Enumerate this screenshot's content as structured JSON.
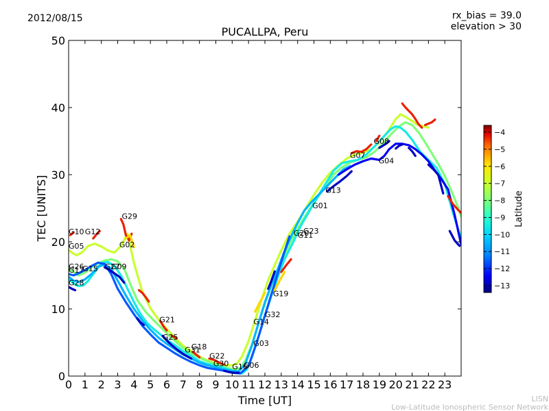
{
  "header": {
    "date": "2012/08/15",
    "rx_bias": "rx_bias = 39.0",
    "elevation": "elevation > 30"
  },
  "watermark": {
    "line1": "LISN",
    "line2": "Low-Latitude Ionospheric Sensor Network"
  },
  "colorbar": {
    "label": "Latitude",
    "min": -13.4,
    "max": -3.6,
    "ticks": [
      -4,
      -5,
      -6,
      -7,
      -8,
      -9,
      -10,
      -11,
      -12,
      -13
    ],
    "colors": [
      "#000080",
      "#0000ff",
      "#0080ff",
      "#00d4ff",
      "#29ffce",
      "#7dff7a",
      "#ceff29",
      "#ffe600",
      "#ff6a00",
      "#e40000",
      "#800000"
    ]
  },
  "chart_data": {
    "type": "scatter",
    "title": "PUCALLPA, Peru",
    "xlabel": "Time [UT]",
    "ylabel": "TEC [UNITS]",
    "xlim": [
      0,
      24
    ],
    "ylim": [
      0,
      50
    ],
    "xticks": [
      "0",
      "1",
      "2",
      "3",
      "4",
      "5",
      "6",
      "7",
      "8",
      "9",
      "10",
      "11",
      "12",
      "13",
      "14",
      "15",
      "16",
      "17",
      "18",
      "19",
      "20",
      "21",
      "22",
      "23"
    ],
    "yticks": [
      "0",
      "10",
      "20",
      "30",
      "40",
      "50"
    ],
    "grid": false,
    "color_by": "Latitude",
    "satellite_labels": [
      {
        "label": "G10",
        "x": 0.0,
        "y": 21.1
      },
      {
        "label": "G12",
        "x": 1.0,
        "y": 21.1
      },
      {
        "label": "G05",
        "x": 0.0,
        "y": 19.0
      },
      {
        "label": "G29",
        "x": 3.25,
        "y": 23.4
      },
      {
        "label": "G02",
        "x": 3.1,
        "y": 19.2
      },
      {
        "label": "G26",
        "x": 0.0,
        "y": 15.9
      },
      {
        "label": "G17",
        "x": 0.0,
        "y": 15.4
      },
      {
        "label": "G15",
        "x": 0.85,
        "y": 15.6
      },
      {
        "label": "G27",
        "x": 2.2,
        "y": 15.9
      },
      {
        "label": "G09",
        "x": 2.6,
        "y": 15.9
      },
      {
        "label": "G28",
        "x": 0.0,
        "y": 13.5
      },
      {
        "label": "G21",
        "x": 5.55,
        "y": 8.0
      },
      {
        "label": "G25",
        "x": 5.75,
        "y": 5.4
      },
      {
        "label": "G18",
        "x": 7.5,
        "y": 4.0
      },
      {
        "label": "G31",
        "x": 7.1,
        "y": 3.5
      },
      {
        "label": "G22",
        "x": 8.6,
        "y": 2.6
      },
      {
        "label": "G30",
        "x": 8.85,
        "y": 1.5
      },
      {
        "label": "G16",
        "x": 10.0,
        "y": 1.0
      },
      {
        "label": "G06",
        "x": 10.7,
        "y": 1.2
      },
      {
        "label": "G03",
        "x": 11.3,
        "y": 4.5
      },
      {
        "label": "G14",
        "x": 11.3,
        "y": 7.7
      },
      {
        "label": "G32",
        "x": 12.0,
        "y": 8.8
      },
      {
        "label": "G19",
        "x": 12.5,
        "y": 11.9
      },
      {
        "label": "G20",
        "x": 13.75,
        "y": 20.9
      },
      {
        "label": "G11",
        "x": 14.0,
        "y": 20.6
      },
      {
        "label": "G23",
        "x": 14.35,
        "y": 21.2
      },
      {
        "label": "G01",
        "x": 14.9,
        "y": 25.0
      },
      {
        "label": "G13",
        "x": 15.7,
        "y": 27.3
      },
      {
        "label": "G07",
        "x": 17.2,
        "y": 32.5
      },
      {
        "label": "G08",
        "x": 18.65,
        "y": 34.6
      },
      {
        "label": "G04",
        "x": 18.95,
        "y": 31.7
      }
    ],
    "series": [
      {
        "lat": -7.0,
        "x": [
          0.0,
          0.25,
          0.5,
          0.8,
          1.2,
          1.6,
          2.0,
          2.4,
          2.8,
          3.2,
          3.6,
          4.0,
          4.5,
          5.0,
          5.5,
          6.0,
          6.5,
          7.0,
          7.5,
          8.0,
          8.5,
          9.0,
          9.5,
          10.0,
          10.3,
          10.6,
          11.0,
          11.4,
          11.8,
          12.2,
          12.6,
          13.0,
          13.5,
          14.0,
          14.5,
          15.0,
          15.5,
          16.0,
          16.5,
          17.0,
          17.5,
          18.0,
          18.5,
          19.0,
          19.5,
          20.0,
          20.3,
          20.6,
          21.0,
          21.3,
          21.6,
          22.0
        ],
        "y": [
          18.8,
          18.3,
          18.0,
          18.4,
          19.4,
          19.7,
          19.3,
          18.7,
          18.4,
          19.4,
          21.2,
          16.8,
          12.6,
          10.1,
          8.4,
          7.0,
          5.7,
          4.5,
          3.7,
          2.9,
          2.3,
          1.9,
          1.6,
          1.6,
          1.9,
          2.9,
          5.2,
          8.3,
          11.4,
          14.3,
          16.5,
          18.7,
          21.2,
          23.0,
          25.0,
          27.0,
          28.8,
          30.3,
          31.4,
          32.4,
          33.0,
          33.3,
          33.8,
          34.8,
          36.4,
          38.3,
          39.0,
          38.6,
          38.0,
          37.5,
          37.3,
          37.0
        ]
      },
      {
        "lat": -8.0,
        "x": [
          0.0,
          0.3,
          0.6,
          1.0,
          1.4,
          1.8,
          2.2,
          2.6,
          3.0,
          3.4,
          3.8,
          4.2,
          4.7,
          5.2,
          5.7,
          6.2,
          6.7,
          7.2,
          7.7,
          8.2,
          8.7,
          9.2,
          9.7,
          10.2,
          10.5,
          10.8,
          11.2,
          11.6,
          12.0,
          12.4,
          12.8,
          13.2,
          13.7,
          14.2,
          14.7,
          15.2,
          15.7,
          16.2,
          16.7,
          17.2,
          17.7,
          18.2,
          18.7,
          19.2,
          19.7,
          20.2,
          20.6,
          21.0,
          21.4,
          21.8,
          22.2,
          22.6,
          23.0,
          23.4,
          23.8,
          24.0
        ],
        "y": [
          16.0,
          15.5,
          15.0,
          15.4,
          16.2,
          16.8,
          17.2,
          17.4,
          17.1,
          16.0,
          13.5,
          11.3,
          9.6,
          8.3,
          7.1,
          5.9,
          4.8,
          3.8,
          3.1,
          2.5,
          2.0,
          1.6,
          1.2,
          1.0,
          1.2,
          2.3,
          4.6,
          7.8,
          10.8,
          13.5,
          15.8,
          18.1,
          20.6,
          22.8,
          24.7,
          26.5,
          28.3,
          30.0,
          31.1,
          31.8,
          32.2,
          32.6,
          33.4,
          34.6,
          36.0,
          37.2,
          37.8,
          37.4,
          36.3,
          34.8,
          33.2,
          31.6,
          29.8,
          27.6,
          25.2,
          23.8
        ]
      },
      {
        "lat": -9.5,
        "x": [
          0.0,
          0.3,
          0.6,
          0.9,
          1.2,
          1.6,
          2.0,
          2.4,
          2.8,
          3.2,
          3.6,
          4.0,
          4.4,
          4.8,
          5.2,
          5.6,
          6.0,
          6.5,
          7.0,
          7.5,
          8.0,
          8.5,
          9.0,
          9.5,
          10.0,
          10.3,
          10.6,
          10.9,
          11.2,
          11.6,
          12.0,
          12.4,
          12.8,
          13.2,
          13.7,
          14.2,
          14.7,
          15.2,
          15.7,
          16.2,
          16.7,
          17.2,
          17.7,
          18.2,
          18.7,
          19.2,
          19.7,
          20.0,
          20.3,
          20.6,
          21.0,
          21.5,
          22.0,
          22.5,
          23.0,
          23.5,
          24.0
        ],
        "y": [
          14.5,
          13.8,
          13.4,
          13.5,
          14.2,
          15.5,
          16.8,
          17.0,
          16.4,
          15.0,
          13.0,
          11.0,
          9.2,
          7.9,
          7.0,
          6.2,
          5.4,
          4.6,
          3.7,
          3.0,
          2.2,
          1.8,
          1.5,
          1.2,
          0.8,
          0.5,
          0.4,
          1.0,
          2.8,
          5.8,
          9.0,
          12.0,
          14.8,
          17.4,
          19.8,
          22.4,
          24.5,
          26.6,
          28.6,
          30.6,
          31.7,
          32.0,
          32.2,
          33.0,
          34.2,
          35.5,
          36.8,
          37.2,
          37.0,
          36.4,
          35.2,
          33.4,
          32.2,
          31.0,
          28.6,
          24.3,
          20.5
        ]
      },
      {
        "lat": -10.5,
        "x": [
          0.0,
          0.3,
          0.6,
          1.0,
          1.4,
          1.8,
          2.2,
          2.6,
          3.0,
          3.5,
          4.0,
          4.5,
          5.0,
          5.5,
          6.0,
          6.5,
          7.0,
          7.5,
          8.0,
          8.5,
          9.0,
          9.5,
          10.0,
          10.4,
          10.8,
          11.2,
          11.6,
          12.0,
          12.4,
          12.8,
          13.2,
          13.6,
          14.0,
          14.4,
          14.8,
          15.2,
          15.6,
          16.0,
          16.4,
          16.8,
          17.2
        ],
        "y": [
          14.8,
          14.2,
          14.0,
          14.4,
          15.2,
          16.3,
          16.6,
          16.0,
          14.2,
          12.0,
          10.0,
          8.3,
          6.9,
          5.7,
          4.8,
          4.0,
          3.2,
          2.6,
          2.0,
          1.6,
          1.3,
          1.0,
          0.8,
          0.7,
          1.8,
          4.5,
          7.8,
          11.0,
          13.6,
          16.0,
          18.6,
          20.8,
          22.8,
          24.6,
          25.8,
          26.8,
          27.8,
          28.8,
          29.8,
          30.8,
          31.3
        ]
      },
      {
        "lat": -11.6,
        "x": [
          0.0,
          0.3,
          0.6,
          1.0,
          1.4,
          1.8,
          2.2,
          2.6,
          3.0,
          3.5,
          4.0,
          4.5,
          5.0,
          5.5,
          6.0,
          6.5,
          7.0,
          7.5,
          8.0,
          8.5,
          9.0,
          9.5,
          10.0,
          10.5,
          11.0,
          11.5,
          12.0,
          12.5,
          13.0,
          13.5
        ],
        "y": [
          15.2,
          15.0,
          15.3,
          15.8,
          16.4,
          16.9,
          16.7,
          15.2,
          13.0,
          11.0,
          9.2,
          7.5,
          6.2,
          5.0,
          4.2,
          3.4,
          2.7,
          2.1,
          1.6,
          1.2,
          1.0,
          0.8,
          0.5,
          0.4,
          1.5,
          5.0,
          9.0,
          13.0,
          17.0,
          20.8
        ]
      },
      {
        "lat": -12.5,
        "x": [
          16.5,
          17.0,
          17.5,
          18.0,
          18.5,
          19.0,
          19.3,
          19.6,
          20.0,
          20.4,
          20.8,
          21.2,
          21.6,
          22.0,
          22.4,
          22.8,
          23.2,
          23.6,
          24.0
        ],
        "y": [
          30.0,
          30.8,
          31.5,
          32.0,
          32.4,
          32.2,
          32.8,
          33.8,
          34.6,
          34.6,
          34.4,
          33.8,
          33.0,
          32.0,
          30.6,
          29.3,
          27.8,
          24.0,
          19.6
        ]
      },
      {
        "lat": -12.9,
        "x": [
          2.2,
          2.5,
          2.8,
          3.1,
          3.4
        ],
        "y": [
          16.2,
          15.8,
          15.3,
          14.8,
          13.9
        ]
      },
      {
        "lat": -12.9,
        "x": [
          4.2,
          4.4,
          4.6
        ],
        "y": [
          8.6,
          8.0,
          7.6
        ]
      },
      {
        "lat": -12.9,
        "x": [
          5.75,
          6.0,
          6.3,
          6.6,
          7.0,
          7.5
        ],
        "y": [
          6.0,
          5.3,
          4.6,
          4.0,
          3.3,
          2.6
        ]
      },
      {
        "lat": -12.9,
        "x": [
          9.5,
          9.8,
          10.1,
          10.4
        ],
        "y": [
          0.8,
          0.6,
          0.5,
          0.5
        ]
      },
      {
        "lat": -12.9,
        "x": [
          0.0,
          0.2,
          0.4
        ],
        "y": [
          13.3,
          13.0,
          12.8
        ]
      },
      {
        "lat": -12.9,
        "x": [
          12.2,
          12.4,
          12.6
        ],
        "y": [
          13.0,
          14.2,
          15.6
        ]
      },
      {
        "lat": -12.9,
        "x": [
          15.8,
          16.2,
          16.6,
          17.0,
          17.3
        ],
        "y": [
          27.5,
          28.3,
          29.0,
          29.8,
          30.5
        ]
      },
      {
        "lat": -12.9,
        "x": [
          19.0,
          19.2,
          19.4,
          19.6
        ],
        "y": [
          34.0,
          34.3,
          34.6,
          35.0
        ]
      },
      {
        "lat": -12.9,
        "x": [
          20.0,
          20.2,
          20.4
        ],
        "y": [
          33.9,
          34.3,
          34.5
        ]
      },
      {
        "lat": -12.9,
        "x": [
          20.8,
          21.0,
          21.2
        ],
        "y": [
          34.0,
          33.5,
          32.8
        ]
      },
      {
        "lat": -12.9,
        "x": [
          22.0,
          22.3,
          22.6,
          22.9
        ],
        "y": [
          31.5,
          30.8,
          30.0,
          27.2
        ]
      },
      {
        "lat": -12.9,
        "x": [
          23.3,
          23.6,
          23.9
        ],
        "y": [
          21.6,
          20.2,
          19.4
        ]
      },
      {
        "lat": -4.3,
        "x": [
          0.1,
          0.3
        ],
        "y": [
          21.0,
          21.4
        ]
      },
      {
        "lat": -4.3,
        "x": [
          1.5,
          1.7,
          1.9
        ],
        "y": [
          20.5,
          21.1,
          21.6
        ]
      },
      {
        "lat": -4.3,
        "x": [
          3.2,
          3.35,
          3.5,
          3.7,
          3.85
        ],
        "y": [
          23.4,
          22.6,
          21.0,
          20.2,
          21.2
        ]
      },
      {
        "lat": -4.3,
        "x": [
          4.3,
          4.5,
          4.7,
          4.9
        ],
        "y": [
          12.8,
          12.4,
          11.8,
          11.1
        ]
      },
      {
        "lat": -4.3,
        "x": [
          5.6,
          5.8,
          6.0
        ],
        "y": [
          8.2,
          7.4,
          6.8
        ]
      },
      {
        "lat": -4.3,
        "x": [
          6.3,
          6.6
        ],
        "y": [
          6.0,
          5.6
        ]
      },
      {
        "lat": -4.3,
        "x": [
          7.6,
          7.8,
          8.0
        ],
        "y": [
          3.6,
          3.2,
          2.8
        ]
      },
      {
        "lat": -4.3,
        "x": [
          8.6,
          8.9,
          9.2,
          9.5
        ],
        "y": [
          2.6,
          2.4,
          2.0,
          1.7
        ]
      },
      {
        "lat": -4.3,
        "x": [
          13.0,
          13.3,
          13.6
        ],
        "y": [
          15.5,
          16.5,
          17.4
        ]
      },
      {
        "lat": -4.3,
        "x": [
          17.3,
          17.6,
          17.9,
          18.2,
          18.5
        ],
        "y": [
          33.2,
          33.5,
          33.4,
          33.8,
          34.5
        ]
      },
      {
        "lat": -4.3,
        "x": [
          18.8,
          19.0
        ],
        "y": [
          35.0,
          35.8
        ]
      },
      {
        "lat": -4.3,
        "x": [
          20.4,
          20.6,
          20.8,
          21.0,
          21.2,
          21.4,
          21.6
        ],
        "y": [
          40.6,
          40.0,
          39.5,
          39.0,
          38.3,
          37.5,
          37.0
        ]
      },
      {
        "lat": -4.3,
        "x": [
          21.8,
          22.0,
          22.2,
          22.4
        ],
        "y": [
          37.4,
          37.6,
          37.8,
          38.2
        ]
      },
      {
        "lat": -4.3,
        "x": [
          23.2,
          23.5,
          23.8,
          24.0
        ],
        "y": [
          26.8,
          25.6,
          24.8,
          24.3
        ]
      },
      {
        "lat": -5.8,
        "x": [
          3.5,
          3.75,
          4.0
        ],
        "y": [
          20.5,
          21.0,
          19.2
        ]
      },
      {
        "lat": -5.8,
        "x": [
          11.4,
          11.7,
          12.0
        ],
        "y": [
          9.6,
          11.0,
          12.4
        ]
      },
      {
        "lat": -5.8,
        "x": [
          12.6,
          12.9,
          13.2
        ],
        "y": [
          12.8,
          14.2,
          15.5
        ]
      }
    ]
  }
}
